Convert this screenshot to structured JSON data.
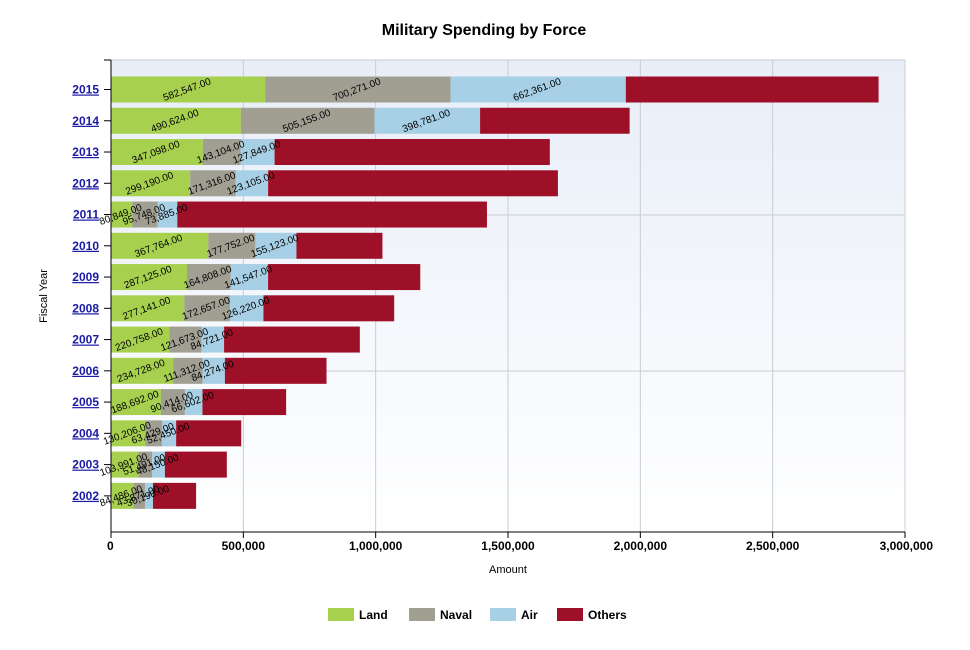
{
  "chart_data": {
    "type": "bar",
    "orientation": "horizontal",
    "stacked": true,
    "title": "Military Spending by Force",
    "xlabel": "Amount",
    "ylabel": "Fiscal Year",
    "xlim": [
      0,
      3000000
    ],
    "x_ticks": [
      "0",
      "500,000",
      "1,000,000",
      "1,500,000",
      "2,000,000",
      "2,500,000",
      "3,000,000"
    ],
    "x_tick_values": [
      0,
      500000,
      1000000,
      1500000,
      2000000,
      2500000,
      3000000
    ],
    "grid": true,
    "legend_position": "bottom",
    "categories": [
      "2015",
      "2014",
      "2013",
      "2012",
      "2011",
      "2010",
      "2009",
      "2008",
      "2007",
      "2006",
      "2005",
      "2004",
      "2003",
      "2002"
    ],
    "series": [
      {
        "name": "Land",
        "color": "#a8d04f",
        "values": [
          582547,
          490624,
          347098,
          299190,
          80849,
          367764,
          287125,
          277141,
          220758,
          234728,
          188692,
          130206,
          103991,
          84486
        ],
        "labels": [
          "582,547.00",
          "490,624.00",
          "347,098.00",
          "299,190.00",
          "80,849.00",
          "367,764.00",
          "287,125.00",
          "277,141.00",
          "220,758.00",
          "234,728.00",
          "188,692.00",
          "130,206.00",
          "103,991.00",
          "84,486.00"
        ]
      },
      {
        "name": "Naval",
        "color": "#a19e92",
        "values": [
          700271,
          505155,
          143104,
          171316,
          95748,
          177752,
          164808,
          172657,
          121673,
          111312,
          90414,
          63429,
          51491,
          43871
        ],
        "labels": [
          "700,271.00",
          "505,155.00",
          "143,104.00",
          "171,316.00",
          "95,748.00",
          "177,752.00",
          "164,808.00",
          "172,657.00",
          "121,673.00",
          "111,312.00",
          "90,414.00",
          "63,429.00",
          "51,491.00",
          "43,871.00"
        ]
      },
      {
        "name": "Air",
        "color": "#a7d0e6",
        "values": [
          662361,
          398781,
          127849,
          123105,
          73885,
          155123,
          141547,
          126220,
          84721,
          84274,
          66602,
          52450,
          48150,
          30190
        ],
        "labels": [
          "662,361.00",
          "398,781.00",
          "127,849.00",
          "123,105.00",
          "73,885.00",
          "155,123.00",
          "141,547.00",
          "126,220.00",
          "84,721.00",
          "84,274.00",
          "66,602.00",
          "52,450.00",
          "48,150.00",
          "30,190.00"
        ]
      },
      {
        "name": "Others",
        "color": "#9e1028",
        "values": [
          955000,
          565000,
          1040000,
          1095000,
          1170000,
          325000,
          575000,
          494000,
          513000,
          384000,
          316000,
          246000,
          234000,
          163000
        ]
      }
    ]
  }
}
